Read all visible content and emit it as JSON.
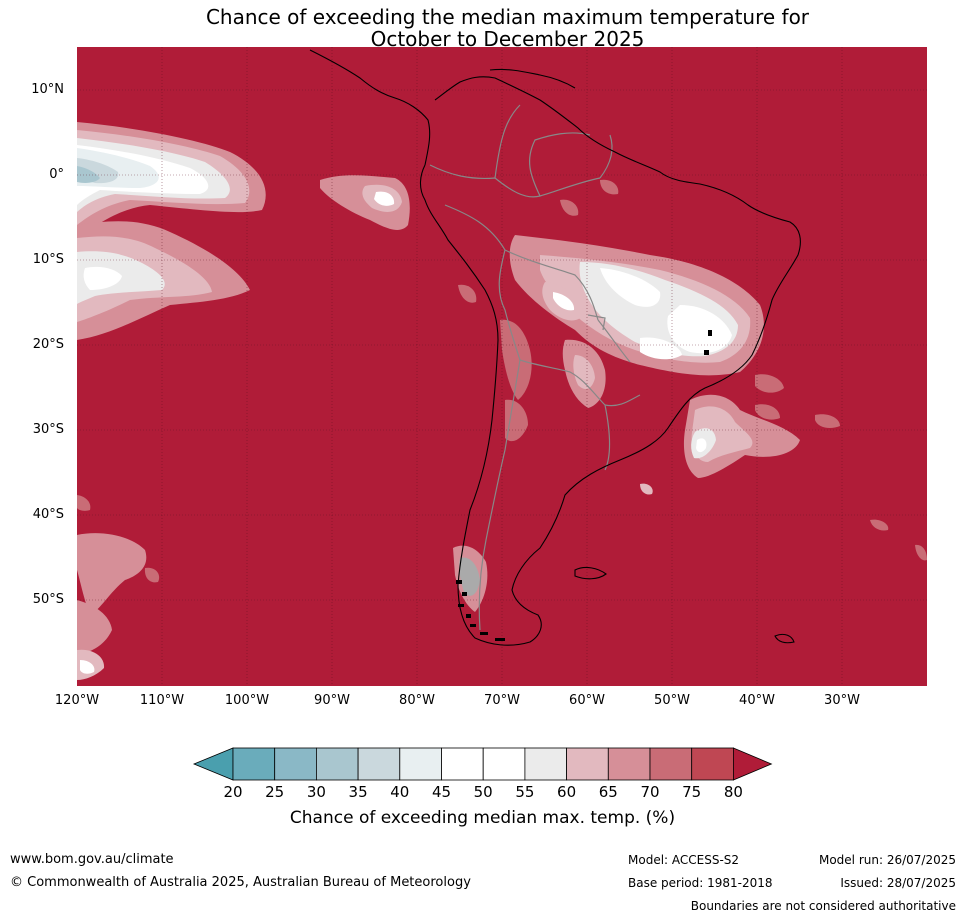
{
  "title_line1": "Chance of exceeding the median maximum temperature for",
  "title_line2": "October to December 2025",
  "lat_labels": [
    "10°N",
    "0°",
    "10°S",
    "20°S",
    "30°S",
    "40°S",
    "50°S"
  ],
  "lon_labels": [
    "120°W",
    "110°W",
    "100°W",
    "90°W",
    "80°W",
    "70°W",
    "60°W",
    "50°W",
    "40°W",
    "30°W"
  ],
  "colorbar": {
    "ticks": [
      "20",
      "25",
      "30",
      "35",
      "40",
      "45",
      "50",
      "55",
      "60",
      "65",
      "70",
      "75",
      "80"
    ],
    "colors": [
      "#4a9fae",
      "#6aacbb",
      "#8ab8c6",
      "#a9c6cf",
      "#cad8dd",
      "#e8eff1",
      "#ffffff",
      "#ffffff",
      "#ebebeb",
      "#e2b9bf",
      "#d68f98",
      "#c96c76",
      "#bf4753",
      "#b01c38"
    ],
    "label": "Chance of exceeding median max. temp. (%)"
  },
  "map_colors": {
    "ocean_land_fill": "#b01c38",
    "band75": "#bf4753",
    "band70": "#c96c76",
    "band65": "#d68f98",
    "band60": "#e2b9bf",
    "band55": "#ebebeb",
    "band50": "#ffffff",
    "band40": "#cad8dd",
    "band35": "#a9c6cf"
  },
  "footer": {
    "website": "www.bom.gov.au/climate",
    "copyright": "© Commonwealth of Australia 2025, Australian Bureau of Meteorology",
    "model": "Model: ACCESS-S2",
    "base_period": "Base period: 1981-2018",
    "model_run": "Model run: 26/07/2025",
    "issued": "Issued: 28/07/2025",
    "disclaimer": "Boundaries are not considered authoritative"
  }
}
